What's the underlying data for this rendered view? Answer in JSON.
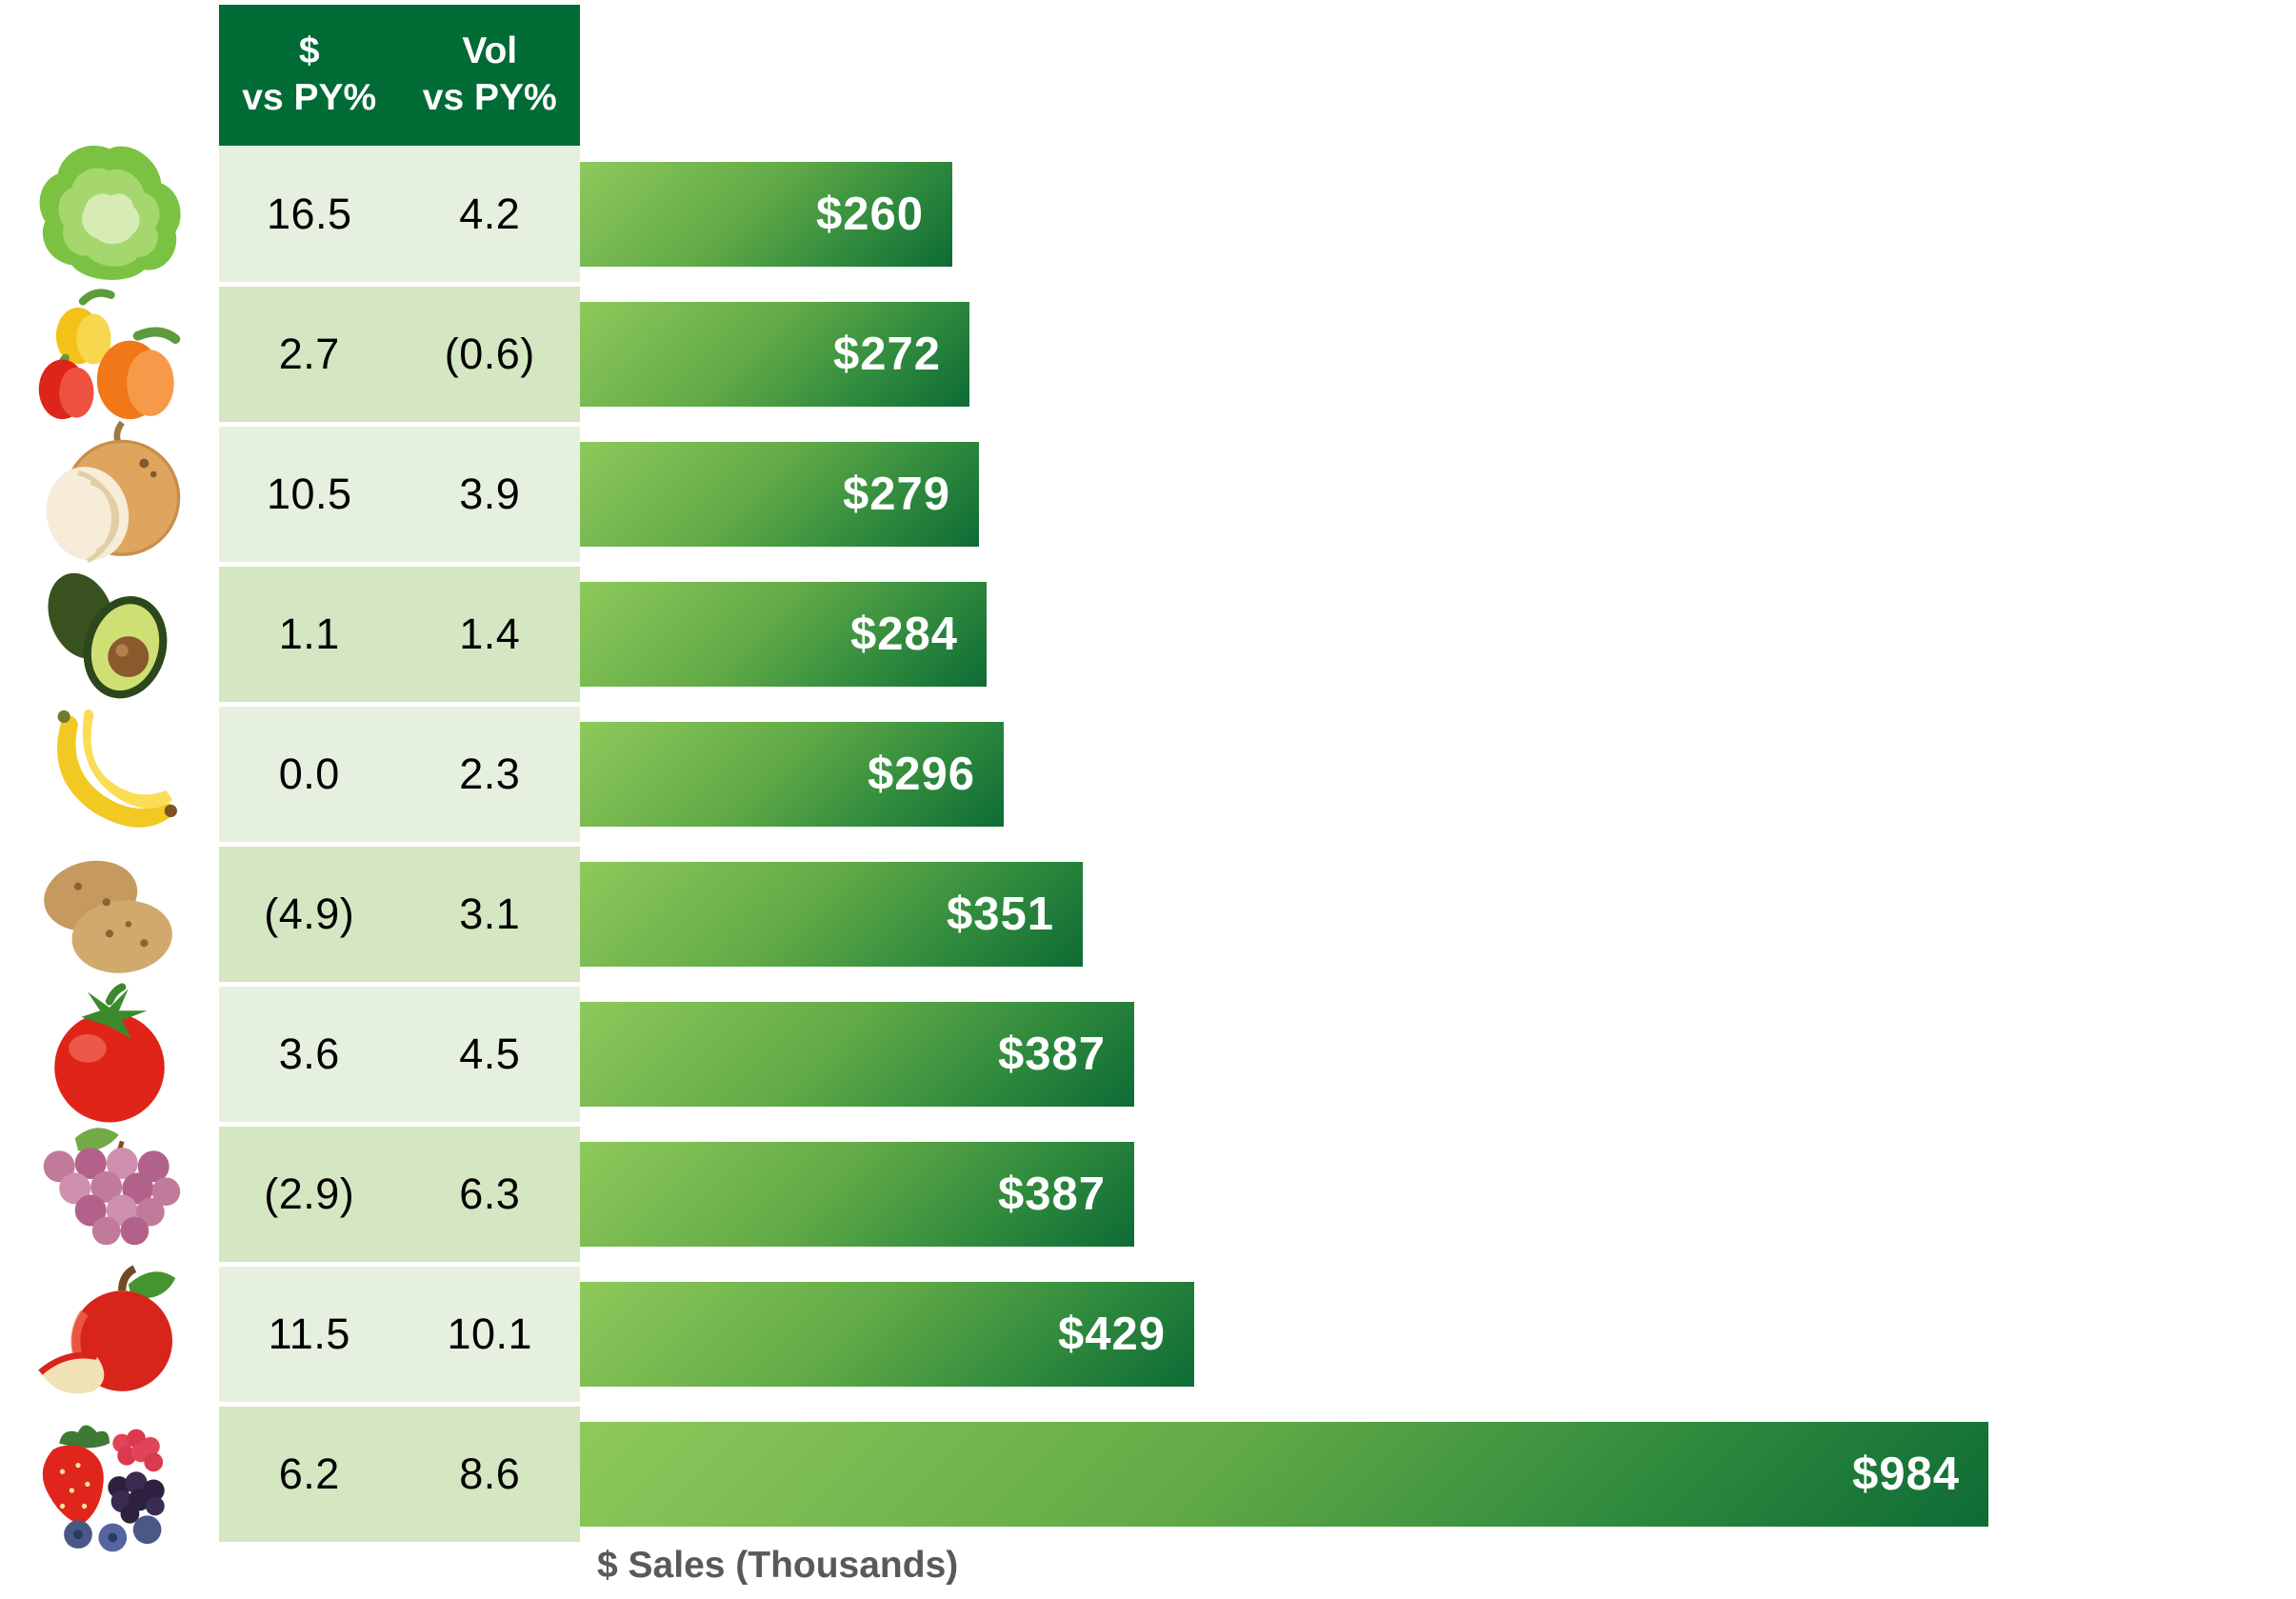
{
  "table": {
    "columns": [
      {
        "line1": "$",
        "line2": "vs PY%"
      },
      {
        "line1": "Vol",
        "line2": "vs PY%"
      }
    ]
  },
  "rows": [
    {
      "fruit": "lettuce",
      "dollar_vs_py": "16.5",
      "vol_vs_py": "4.2",
      "sales_label": "$260",
      "sales_value": 260
    },
    {
      "fruit": "bell-peppers",
      "dollar_vs_py": "2.7",
      "vol_vs_py": "(0.6)",
      "sales_label": "$272",
      "sales_value": 272
    },
    {
      "fruit": "onions",
      "dollar_vs_py": "10.5",
      "vol_vs_py": "3.9",
      "sales_label": "$279",
      "sales_value": 279
    },
    {
      "fruit": "avocados",
      "dollar_vs_py": "1.1",
      "vol_vs_py": "1.4",
      "sales_label": "$284",
      "sales_value": 284
    },
    {
      "fruit": "bananas",
      "dollar_vs_py": "0.0",
      "vol_vs_py": "2.3",
      "sales_label": "$296",
      "sales_value": 296
    },
    {
      "fruit": "potatoes",
      "dollar_vs_py": "(4.9)",
      "vol_vs_py": "3.1",
      "sales_label": "$351",
      "sales_value": 351
    },
    {
      "fruit": "tomatoes",
      "dollar_vs_py": "3.6",
      "vol_vs_py": "4.5",
      "sales_label": "$387",
      "sales_value": 387
    },
    {
      "fruit": "grapes",
      "dollar_vs_py": "(2.9)",
      "vol_vs_py": "6.3",
      "sales_label": "$387",
      "sales_value": 387
    },
    {
      "fruit": "apples",
      "dollar_vs_py": "11.5",
      "vol_vs_py": "10.1",
      "sales_label": "$429",
      "sales_value": 429
    },
    {
      "fruit": "berries",
      "dollar_vs_py": "6.2",
      "vol_vs_py": "8.6",
      "sales_label": "$984",
      "sales_value": 984
    }
  ],
  "chart_data": {
    "type": "bar",
    "orientation": "horizontal",
    "categories": [
      "Lettuce",
      "Bell peppers",
      "Onions",
      "Avocados",
      "Bananas",
      "Potatoes",
      "Tomatoes",
      "Grapes",
      "Apples",
      "Berries"
    ],
    "series": [
      {
        "name": "$ Sales (Thousands)",
        "values": [
          260,
          272,
          279,
          284,
          296,
          351,
          387,
          387,
          429,
          984
        ]
      },
      {
        "name": "$ vs PY%",
        "values": [
          16.5,
          2.7,
          10.5,
          1.1,
          0.0,
          -4.9,
          3.6,
          -2.9,
          11.5,
          6.2
        ]
      },
      {
        "name": "Vol vs PY%",
        "values": [
          4.2,
          -0.6,
          3.9,
          1.4,
          2.3,
          3.1,
          4.5,
          6.3,
          10.1,
          8.6
        ]
      }
    ],
    "bar_labels": [
      "$260",
      "$272",
      "$279",
      "$284",
      "$296",
      "$351",
      "$387",
      "$387",
      "$429",
      "$984"
    ],
    "title": "",
    "xlabel": "$ Sales (Thousands)",
    "ylabel": "",
    "xlim": [
      0,
      1000
    ],
    "grid": false,
    "legend": false
  },
  "colors": {
    "header_bg": "#006b35",
    "header_text": "#ffffff",
    "row_light": "#e6f0de",
    "row_dark": "#d5e6c2",
    "bar_gradient_start": "#8ec95b",
    "bar_gradient_end": "#0e6b35",
    "bar_label": "#ffffff",
    "table_text": "#000000",
    "axis_label_text": "#595959"
  }
}
